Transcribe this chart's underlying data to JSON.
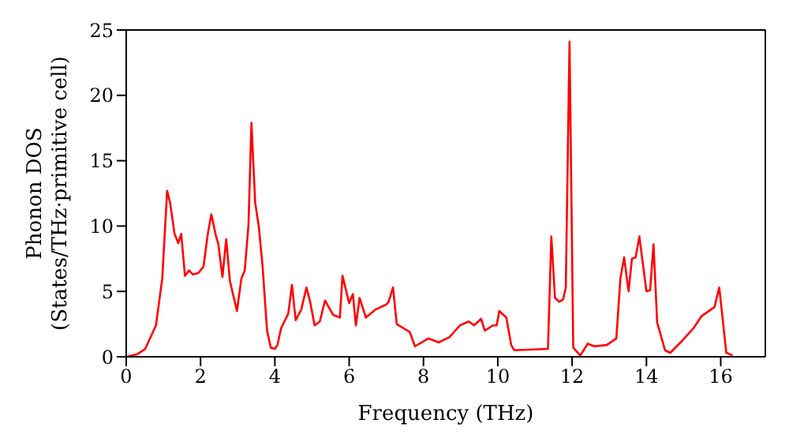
{
  "chart_data": {
    "type": "line",
    "xlabel": "Frequency (THz)",
    "ylabel": "Phonon DOS\n(States/THz·primitive cell)",
    "xlim": [
      0,
      17.2
    ],
    "xticks": [
      0,
      2,
      4,
      6,
      8,
      10,
      12,
      14,
      16
    ],
    "ylim": [
      0,
      25
    ],
    "yticks": [
      0,
      5,
      10,
      15,
      20,
      25
    ],
    "grid": false,
    "legend": false,
    "marker": "none",
    "line_style": "solid",
    "x": [
      0,
      0.3,
      0.51,
      0.8,
      0.97,
      1.1,
      1.18,
      1.3,
      1.4,
      1.48,
      1.58,
      1.69,
      1.79,
      1.94,
      2.08,
      2.19,
      2.29,
      2.41,
      2.48,
      2.59,
      2.69,
      2.79,
      2.98,
      3.1,
      3.19,
      3.29,
      3.37,
      3.47,
      3.57,
      3.67,
      3.79,
      3.89,
      4.0,
      4.07,
      4.17,
      4.36,
      4.46,
      4.56,
      4.71,
      4.85,
      4.95,
      5.07,
      5.21,
      5.35,
      5.57,
      5.75,
      5.82,
      6.0,
      6.1,
      6.18,
      6.28,
      6.45,
      6.7,
      7.0,
      7.06,
      7.18,
      7.28,
      7.63,
      7.77,
      8.13,
      8.41,
      8.7,
      8.98,
      9.22,
      9.36,
      9.55,
      9.65,
      9.87,
      9.97,
      10.04,
      10.23,
      10.36,
      10.44,
      11.35,
      11.44,
      11.54,
      11.66,
      11.76,
      11.83,
      11.93,
      12.03,
      12.22,
      12.42,
      12.6,
      12.93,
      13.19,
      13.3,
      13.4,
      13.52,
      13.61,
      13.71,
      13.81,
      14.0,
      14.1,
      14.19,
      14.29,
      14.5,
      14.64,
      14.92,
      15.27,
      15.48,
      15.83,
      15.96,
      16.15,
      16.32
    ],
    "series": [
      {
        "color": "#ff0000",
        "values": [
          0,
          0.2,
          0.6,
          2.4,
          6.0,
          12.7,
          11.8,
          9.4,
          8.7,
          9.4,
          6.2,
          6.6,
          6.3,
          6.4,
          6.9,
          9.3,
          10.9,
          9.3,
          8.6,
          6.1,
          9.0,
          5.8,
          3.5,
          6.0,
          6.6,
          10.1,
          17.9,
          11.8,
          9.9,
          6.9,
          2.0,
          0.7,
          0.6,
          0.9,
          2.2,
          3.3,
          5.5,
          2.8,
          3.6,
          5.3,
          4.2,
          2.4,
          2.7,
          4.3,
          3.2,
          3.0,
          6.2,
          4.1,
          4.8,
          2.4,
          4.5,
          3.0,
          3.6,
          4.0,
          4.2,
          5.3,
          2.5,
          1.9,
          0.8,
          1.4,
          1.1,
          1.5,
          2.4,
          2.7,
          2.4,
          2.9,
          2.0,
          2.4,
          2.4,
          3.5,
          3.0,
          0.9,
          0.5,
          0.6,
          9.2,
          4.5,
          4.2,
          4.4,
          5.3,
          24.1,
          0.7,
          0.1,
          1.0,
          0.8,
          0.9,
          1.4,
          6.0,
          7.6,
          5.0,
          7.5,
          7.6,
          9.2,
          5.0,
          5.1,
          8.6,
          2.6,
          0.5,
          0.3,
          1.1,
          2.2,
          3.1,
          3.8,
          5.3,
          0.3,
          0.1
        ]
      }
    ]
  }
}
